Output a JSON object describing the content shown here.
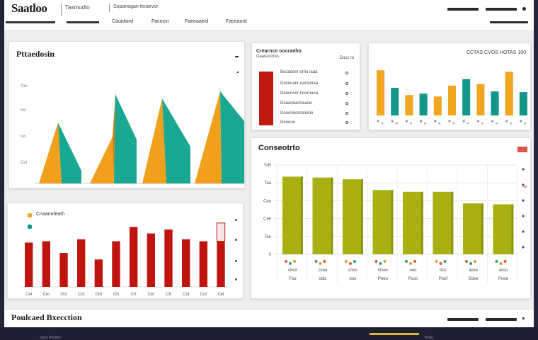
{
  "header": {
    "brand": "Saatloo",
    "crumb": "Tasmudto",
    "crumb_small": "Sopanogan teoarvor",
    "tabs": [
      "Cauidaird",
      "Faceion",
      "Faeeaaeid",
      "Faceaord"
    ]
  },
  "area_panel": {
    "title": "Pttaedosin",
    "y_ticks": [
      "Tos",
      "Ios",
      "Ios",
      "Coi"
    ],
    "colors": {
      "front": "#f0a01c",
      "side": "#1aa892",
      "shade": "#c97f10"
    }
  },
  "list_panel": {
    "title": "Crearnce oocraeho",
    "subtitle": "Daarerorres",
    "stub": "Ducc tu",
    "rows": [
      "Bocaoonr orrio iaaa",
      "Docooanr oaroonaa",
      "Doocnnor noornooa",
      "Doaanoarnoueer",
      "Dooonnorooneoo",
      "Dooooo"
    ],
    "accent": "#c01a10"
  },
  "mini_bars": {
    "title": "CCTAS CVOS HOTAS 100",
    "chart_data": {
      "type": "bar",
      "values": [
        62,
        38,
        28,
        30,
        26,
        41,
        50,
        43,
        33,
        60,
        32
      ],
      "colors": [
        "#f0a620",
        "#14978a",
        "#f0a620",
        "#14978a",
        "#f0a620",
        "#f0a620",
        "#14978a",
        "#f0a620",
        "#14978a",
        "#f0a620",
        "#14978a"
      ],
      "ylim": [
        0,
        70
      ]
    }
  },
  "red_bars": {
    "legend": [
      "Cnaanofeath",
      ""
    ],
    "legend_colors": [
      "#f0a620",
      "#14978a"
    ],
    "x_labels": [
      "Cet",
      "Cet",
      "Ost",
      "Cot",
      "Oot",
      "Ott",
      "Crt",
      "Cel",
      "Ctt",
      "Cot",
      "Cot",
      "Cel"
    ],
    "chart_data": {
      "type": "bar",
      "values": [
        68,
        70,
        52,
        73,
        42,
        70,
        92,
        82,
        88,
        73,
        70,
        70
      ],
      "highlight_index": 11,
      "highlight_extra": 28,
      "color": "#c0140e",
      "ylim": [
        0,
        100
      ]
    }
  },
  "main_chart": {
    "title": "Conseotrto",
    "y_ticks": [
      "ToR",
      "Taa",
      "Caa",
      "Cee",
      "Tee",
      "0"
    ],
    "x_labels": [
      "chcd",
      "cceo",
      "cnso",
      "Goes",
      "uuo",
      "ttos",
      "acee",
      "asso"
    ],
    "x_labels2": [
      "Foo",
      "odci",
      "ooo",
      "Poeo",
      "Pcoo",
      "Poof",
      "Soee",
      "Pooe"
    ],
    "chart_data": {
      "type": "bar",
      "values": [
        87,
        86,
        84,
        72,
        70,
        70,
        57,
        56
      ],
      "ylim": [
        0,
        100
      ],
      "color": "#a8b014",
      "edge": "#6f7a0a"
    },
    "badge_color": "#e0554a",
    "right_label": "Tae"
  },
  "footer": {
    "title": "Poulcaed Bxecction"
  },
  "taskbar": {
    "left_text": "Sgen Pnhilnin",
    "right_text": "Brsfa"
  }
}
